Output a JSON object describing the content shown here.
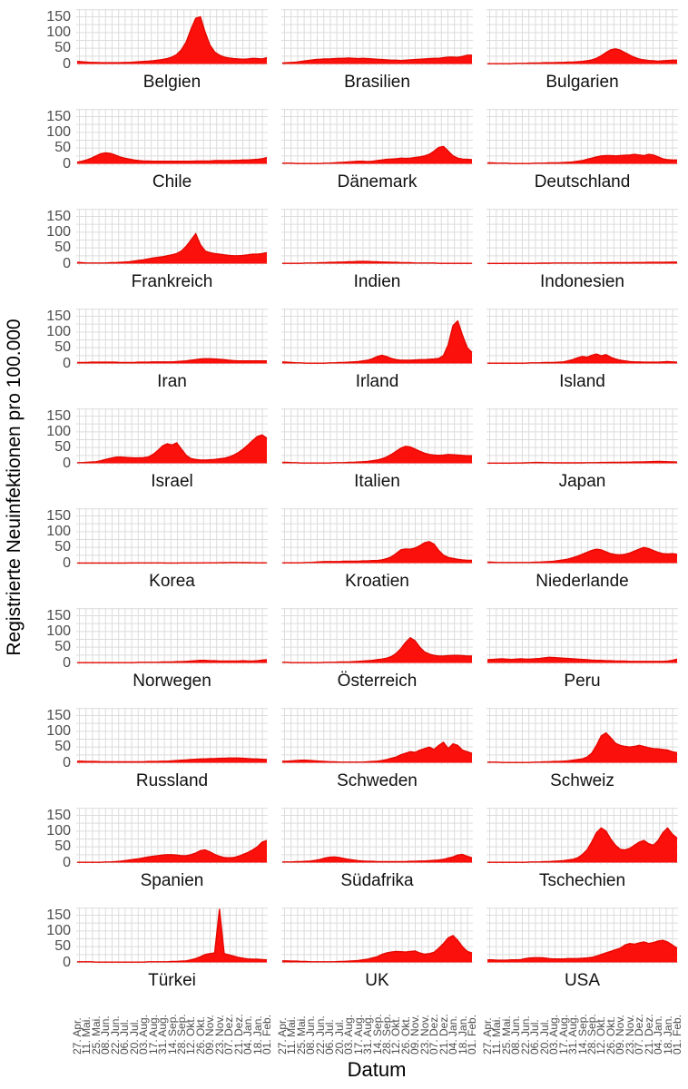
{
  "chart_data": {
    "type": "area",
    "title": "",
    "ylabel": "Registrierte Neuinfektionen pro 100.000",
    "xlabel": "Datum",
    "y_ticks": [
      0,
      50,
      100,
      150
    ],
    "ylim": [
      0,
      175
    ],
    "grid": "on",
    "layout": {
      "rows": 10,
      "cols": 3
    },
    "colors": {
      "area_fill": "#fb100c",
      "area_stroke": "#e40800",
      "grid": "#dcdcdc",
      "tick_text": "#4d4d4d",
      "label_text": "#111111",
      "background": "#ffffff"
    },
    "x_tick_labels": [
      "27. Apr.",
      "11. Mai.",
      "25. Mai.",
      "08. Jun.",
      "22. Jun.",
      "06. Jul.",
      "20. Jul.",
      "03. Aug.",
      "17. Aug.",
      "31. Aug.",
      "14. Sep.",
      "28. Sep.",
      "12. Okt.",
      "26. Okt.",
      "09. Nov.",
      "23. Nov.",
      "07. Dez.",
      "21. Dez.",
      "04. Jan.",
      "18. Jan.",
      "01. Feb."
    ],
    "series": [
      {
        "name": "Belgien",
        "values": [
          8,
          7,
          6,
          5,
          5,
          4,
          4,
          4,
          4,
          4,
          5,
          5,
          6,
          7,
          8,
          9,
          10,
          12,
          14,
          17,
          22,
          30,
          45,
          70,
          110,
          145,
          150,
          100,
          60,
          38,
          28,
          22,
          19,
          17,
          16,
          15,
          16,
          18,
          17,
          16,
          20
        ]
      },
      {
        "name": "Brasilien",
        "values": [
          3,
          4,
          5,
          6,
          8,
          10,
          12,
          14,
          15,
          16,
          16,
          17,
          18,
          18,
          19,
          18,
          17,
          18,
          17,
          16,
          15,
          14,
          13,
          12,
          12,
          11,
          12,
          13,
          14,
          15,
          16,
          17,
          18,
          18,
          20,
          22,
          22,
          21,
          24,
          28,
          28
        ]
      },
      {
        "name": "Bulgarien",
        "values": [
          1,
          1,
          1,
          1,
          1,
          1,
          2,
          2,
          2,
          3,
          3,
          3,
          4,
          4,
          4,
          5,
          5,
          6,
          6,
          7,
          8,
          10,
          13,
          18,
          26,
          36,
          45,
          48,
          44,
          36,
          28,
          21,
          16,
          13,
          11,
          10,
          9,
          10,
          11,
          12,
          12
        ]
      },
      {
        "name": "Chile",
        "values": [
          5,
          8,
          12,
          18,
          25,
          32,
          35,
          33,
          28,
          22,
          18,
          15,
          12,
          10,
          9,
          9,
          8,
          8,
          8,
          8,
          8,
          8,
          8,
          8,
          8,
          9,
          9,
          9,
          9,
          10,
          10,
          10,
          10,
          11,
          11,
          12,
          12,
          13,
          14,
          16,
          20
        ]
      },
      {
        "name": "Dänemark",
        "values": [
          2,
          2,
          2,
          1,
          1,
          1,
          1,
          1,
          1,
          2,
          2,
          3,
          4,
          5,
          6,
          7,
          8,
          8,
          7,
          8,
          10,
          12,
          14,
          15,
          16,
          18,
          17,
          18,
          20,
          22,
          25,
          30,
          40,
          52,
          55,
          40,
          25,
          18,
          15,
          14,
          13
        ]
      },
      {
        "name": "Deutschland",
        "values": [
          3,
          3,
          2,
          2,
          2,
          1,
          1,
          1,
          1,
          1,
          2,
          2,
          2,
          3,
          3,
          3,
          4,
          5,
          6,
          8,
          10,
          14,
          18,
          22,
          25,
          26,
          26,
          25,
          26,
          27,
          28,
          30,
          28,
          26,
          30,
          28,
          22,
          16,
          13,
          12,
          12
        ]
      },
      {
        "name": "Frankreich",
        "values": [
          4,
          3,
          2,
          2,
          2,
          2,
          2,
          3,
          3,
          4,
          5,
          6,
          8,
          10,
          12,
          15,
          18,
          20,
          22,
          25,
          28,
          32,
          40,
          55,
          75,
          95,
          60,
          40,
          35,
          32,
          30,
          28,
          26,
          25,
          25,
          26,
          28,
          30,
          30,
          32,
          35
        ]
      },
      {
        "name": "Indien",
        "values": [
          1,
          1,
          1,
          1,
          1,
          2,
          2,
          2,
          3,
          3,
          4,
          4,
          5,
          5,
          6,
          6,
          7,
          7,
          7,
          6,
          6,
          5,
          5,
          4,
          4,
          3,
          3,
          3,
          2,
          2,
          2,
          2,
          2,
          1,
          1,
          1,
          1,
          1,
          1,
          1,
          1
        ]
      },
      {
        "name": "Indonesien",
        "values": [
          0.5,
          0.5,
          0.5,
          0.5,
          1,
          1,
          1,
          1,
          1,
          1,
          1,
          1.5,
          1.5,
          1.5,
          2,
          2,
          2,
          2,
          2,
          2,
          2,
          2,
          2,
          2.5,
          2.5,
          2.5,
          3,
          3,
          3,
          3,
          3,
          3.5,
          3.5,
          3.5,
          4,
          4,
          4,
          4,
          4.5,
          5,
          5
        ]
      },
      {
        "name": "Iran",
        "values": [
          3,
          3,
          3,
          4,
          4,
          4,
          4,
          4,
          4,
          3,
          3,
          3,
          3,
          4,
          4,
          4,
          5,
          5,
          5,
          5,
          5,
          6,
          7,
          8,
          10,
          12,
          14,
          15,
          15,
          14,
          13,
          12,
          10,
          9,
          8,
          8,
          8,
          8,
          8,
          8,
          8
        ]
      },
      {
        "name": "Irland",
        "values": [
          5,
          4,
          3,
          2,
          2,
          1,
          1,
          1,
          1,
          1,
          2,
          2,
          3,
          3,
          4,
          5,
          6,
          8,
          10,
          15,
          22,
          26,
          22,
          16,
          12,
          10,
          10,
          10,
          11,
          12,
          12,
          13,
          14,
          16,
          25,
          60,
          120,
          135,
          90,
          50,
          35
        ]
      },
      {
        "name": "Island",
        "values": [
          1,
          1,
          1,
          1,
          1,
          1,
          1,
          1,
          1,
          2,
          2,
          2,
          3,
          3,
          3,
          4,
          5,
          8,
          12,
          18,
          22,
          20,
          26,
          30,
          24,
          28,
          20,
          14,
          10,
          8,
          6,
          5,
          5,
          4,
          4,
          4,
          4,
          5,
          6,
          5,
          4
        ]
      },
      {
        "name": "Israel",
        "values": [
          2,
          2,
          3,
          4,
          5,
          8,
          12,
          16,
          19,
          20,
          19,
          18,
          17,
          17,
          18,
          20,
          28,
          40,
          55,
          62,
          58,
          65,
          45,
          25,
          15,
          12,
          10,
          10,
          11,
          12,
          14,
          16,
          20,
          26,
          34,
          45,
          58,
          72,
          85,
          90,
          80
        ]
      },
      {
        "name": "Italien",
        "values": [
          3,
          3,
          2,
          2,
          1,
          1,
          1,
          1,
          1,
          1,
          1,
          2,
          2,
          2,
          3,
          3,
          4,
          5,
          6,
          8,
          10,
          14,
          20,
          28,
          38,
          48,
          54,
          52,
          45,
          38,
          32,
          28,
          26,
          25,
          26,
          28,
          27,
          26,
          25,
          24,
          24
        ]
      },
      {
        "name": "Japan",
        "values": [
          0.5,
          0.5,
          0.5,
          0.5,
          0.5,
          0.5,
          1,
          1,
          1.5,
          2,
          2.5,
          2.5,
          2,
          2,
          1.5,
          1.5,
          1.5,
          1.5,
          1.5,
          1.5,
          1.5,
          2,
          2,
          2,
          2.5,
          2.5,
          3,
          3,
          3,
          3.5,
          3.5,
          4,
          4,
          4.5,
          5,
          5.5,
          6,
          5.5,
          5,
          4.5,
          4
        ]
      },
      {
        "name": "Korea",
        "values": [
          0.3,
          0.3,
          0.3,
          0.3,
          0.3,
          0.3,
          0.4,
          0.4,
          0.4,
          0.4,
          0.4,
          0.5,
          0.5,
          0.5,
          0.6,
          0.6,
          0.5,
          0.5,
          0.5,
          0.4,
          0.4,
          0.4,
          0.5,
          0.5,
          0.5,
          0.6,
          0.7,
          0.8,
          0.9,
          1,
          1.2,
          1.5,
          1.8,
          2,
          1.8,
          1.5,
          1.3,
          1.1,
          1,
          0.9,
          0.9
        ]
      },
      {
        "name": "Kroatien",
        "values": [
          1,
          1,
          1,
          1,
          1,
          2,
          2,
          3,
          4,
          5,
          5,
          5,
          5,
          6,
          6,
          6,
          6,
          7,
          7,
          8,
          8,
          10,
          14,
          20,
          30,
          42,
          45,
          44,
          48,
          55,
          65,
          68,
          60,
          40,
          25,
          18,
          15,
          12,
          10,
          9,
          9
        ]
      },
      {
        "name": "Niederlande",
        "values": [
          3,
          3,
          2,
          2,
          2,
          2,
          2,
          2,
          2,
          2,
          3,
          3,
          4,
          5,
          6,
          8,
          10,
          13,
          17,
          22,
          28,
          34,
          40,
          44,
          42,
          36,
          30,
          27,
          26,
          28,
          32,
          38,
          44,
          50,
          46,
          40,
          34,
          30,
          29,
          30,
          28
        ]
      },
      {
        "name": "Norwegen",
        "values": [
          1,
          1,
          1,
          1,
          1,
          1,
          1,
          1,
          1,
          1,
          1,
          1,
          1,
          2,
          2,
          2,
          2,
          2,
          3,
          3,
          3,
          4,
          4,
          5,
          6,
          7,
          8,
          8,
          7,
          7,
          6,
          6,
          6,
          6,
          6,
          7,
          6,
          6,
          7,
          9,
          10
        ]
      },
      {
        "name": "Österreich",
        "values": [
          2,
          2,
          1,
          1,
          1,
          1,
          1,
          1,
          1,
          2,
          2,
          2,
          3,
          3,
          3,
          4,
          5,
          6,
          7,
          8,
          10,
          12,
          15,
          20,
          30,
          45,
          65,
          80,
          70,
          50,
          35,
          28,
          24,
          22,
          22,
          23,
          24,
          24,
          23,
          22,
          22
        ]
      },
      {
        "name": "Peru",
        "values": [
          10,
          11,
          12,
          13,
          12,
          11,
          12,
          13,
          12,
          12,
          13,
          14,
          16,
          18,
          17,
          16,
          15,
          14,
          13,
          12,
          11,
          10,
          9,
          8,
          8,
          7,
          7,
          6,
          6,
          6,
          5,
          5,
          5,
          5,
          5,
          5,
          5,
          5,
          6,
          8,
          12
        ]
      },
      {
        "name": "Russland",
        "values": [
          5,
          5,
          4,
          4,
          4,
          3,
          3,
          3,
          3,
          3,
          3,
          3,
          3,
          3,
          3,
          4,
          4,
          4,
          5,
          5,
          6,
          7,
          8,
          9,
          10,
          11,
          12,
          12,
          13,
          13,
          14,
          14,
          15,
          15,
          15,
          14,
          13,
          12,
          12,
          11,
          10
        ]
      },
      {
        "name": "Schweden",
        "values": [
          5,
          5,
          6,
          7,
          8,
          8,
          7,
          6,
          5,
          4,
          3,
          3,
          2,
          2,
          2,
          2,
          2,
          2,
          3,
          4,
          5,
          7,
          10,
          14,
          18,
          25,
          30,
          35,
          33,
          40,
          45,
          50,
          42,
          55,
          65,
          45,
          60,
          55,
          40,
          35,
          30
        ]
      },
      {
        "name": "Schweiz",
        "values": [
          2,
          2,
          2,
          1,
          1,
          1,
          1,
          1,
          1,
          1,
          2,
          2,
          3,
          3,
          4,
          4,
          5,
          6,
          8,
          10,
          12,
          18,
          30,
          55,
          85,
          95,
          80,
          62,
          55,
          52,
          50,
          52,
          55,
          52,
          48,
          45,
          44,
          42,
          40,
          35,
          32
        ]
      },
      {
        "name": "Spanien",
        "values": [
          1,
          1,
          1,
          1,
          1,
          1,
          2,
          2,
          3,
          4,
          6,
          8,
          10,
          12,
          15,
          18,
          20,
          22,
          24,
          25,
          25,
          24,
          22,
          22,
          25,
          30,
          38,
          40,
          34,
          26,
          20,
          16,
          15,
          16,
          20,
          26,
          32,
          40,
          50,
          65,
          70
        ]
      },
      {
        "name": "Südafrika",
        "values": [
          2,
          2,
          2,
          3,
          3,
          4,
          5,
          7,
          10,
          14,
          17,
          18,
          16,
          13,
          10,
          8,
          6,
          5,
          4,
          4,
          3,
          3,
          3,
          3,
          3,
          3,
          3,
          4,
          4,
          5,
          5,
          6,
          7,
          8,
          10,
          14,
          18,
          24,
          26,
          20,
          15
        ]
      },
      {
        "name": "Tschechien",
        "values": [
          1,
          1,
          1,
          1,
          1,
          1,
          1,
          1,
          1,
          2,
          2,
          2,
          3,
          3,
          4,
          5,
          6,
          8,
          10,
          15,
          25,
          40,
          65,
          95,
          110,
          100,
          75,
          55,
          42,
          40,
          45,
          55,
          65,
          70,
          60,
          55,
          70,
          95,
          110,
          90,
          78
        ]
      },
      {
        "name": "Türkei",
        "values": [
          2,
          2,
          2,
          2,
          1,
          1,
          1,
          1,
          1,
          1,
          1,
          1,
          1,
          1,
          1,
          2,
          2,
          2,
          2,
          2,
          3,
          3,
          4,
          5,
          8,
          12,
          18,
          25,
          28,
          30,
          170,
          28,
          24,
          20,
          16,
          13,
          11,
          10,
          10,
          9,
          8
        ]
      },
      {
        "name": "UK",
        "values": [
          5,
          5,
          4,
          4,
          3,
          3,
          2,
          2,
          2,
          2,
          2,
          2,
          3,
          3,
          4,
          5,
          6,
          8,
          10,
          14,
          18,
          25,
          30,
          33,
          35,
          34,
          33,
          35,
          36,
          30,
          26,
          28,
          32,
          45,
          60,
          78,
          85,
          70,
          50,
          35,
          30
        ]
      },
      {
        "name": "USA",
        "values": [
          8,
          8,
          7,
          7,
          7,
          8,
          8,
          9,
          12,
          14,
          15,
          15,
          14,
          12,
          11,
          11,
          11,
          12,
          12,
          12,
          13,
          14,
          16,
          20,
          25,
          30,
          35,
          40,
          45,
          55,
          60,
          58,
          62,
          65,
          60,
          63,
          68,
          70,
          65,
          55,
          45
        ]
      }
    ]
  }
}
